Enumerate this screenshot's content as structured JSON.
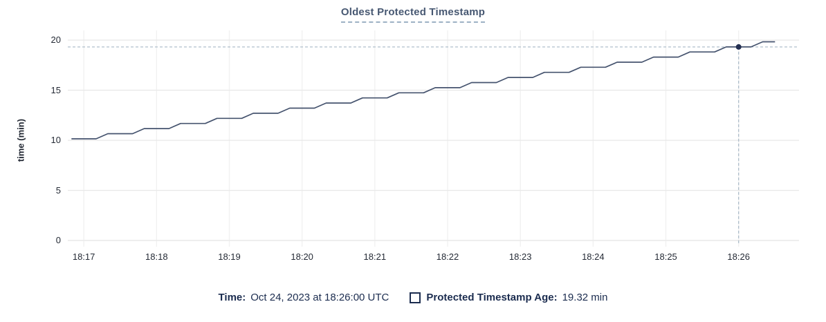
{
  "chart_data": {
    "type": "line",
    "title": "Oldest Protected Timestamp",
    "xlabel": "",
    "ylabel": "time (min)",
    "x_unit": "minutes after 18:00 UTC, Oct 24 2023",
    "xlim": [
      16.78,
      26.83
    ],
    "ylim": [
      0,
      20.97
    ],
    "grid": true,
    "legend_position": "bottom",
    "x_ticks": {
      "values": [
        17,
        18,
        19,
        20,
        21,
        22,
        23,
        24,
        25,
        26
      ],
      "labels": [
        "18:17",
        "18:18",
        "18:19",
        "18:20",
        "18:21",
        "18:22",
        "18:23",
        "18:24",
        "18:25",
        "18:26"
      ]
    },
    "y_ticks": {
      "values": [
        0,
        5,
        10,
        15,
        20
      ],
      "labels": [
        "0",
        "5",
        "10",
        "15",
        "20"
      ]
    },
    "series": [
      {
        "name": "Protected Timestamp Age",
        "unit": "min",
        "points": [
          [
            16.83,
            10.15
          ],
          [
            17.17,
            10.15
          ],
          [
            17.33,
            10.66
          ],
          [
            17.67,
            10.66
          ],
          [
            17.83,
            11.17
          ],
          [
            18.17,
            11.17
          ],
          [
            18.33,
            11.68
          ],
          [
            18.67,
            11.68
          ],
          [
            18.83,
            12.19
          ],
          [
            19.17,
            12.19
          ],
          [
            19.33,
            12.7
          ],
          [
            19.67,
            12.7
          ],
          [
            19.83,
            13.21
          ],
          [
            20.17,
            13.21
          ],
          [
            20.33,
            13.72
          ],
          [
            20.67,
            13.72
          ],
          [
            20.83,
            14.23
          ],
          [
            21.17,
            14.23
          ],
          [
            21.33,
            14.74
          ],
          [
            21.67,
            14.74
          ],
          [
            21.83,
            15.25
          ],
          [
            22.17,
            15.25
          ],
          [
            22.33,
            15.76
          ],
          [
            22.67,
            15.76
          ],
          [
            22.83,
            16.27
          ],
          [
            23.17,
            16.27
          ],
          [
            23.33,
            16.78
          ],
          [
            23.67,
            16.78
          ],
          [
            23.83,
            17.29
          ],
          [
            24.17,
            17.29
          ],
          [
            24.33,
            17.8
          ],
          [
            24.67,
            17.8
          ],
          [
            24.83,
            18.31
          ],
          [
            25.17,
            18.31
          ],
          [
            25.33,
            18.82
          ],
          [
            25.67,
            18.82
          ],
          [
            25.83,
            19.32
          ],
          [
            26.17,
            19.32
          ],
          [
            26.33,
            19.83
          ],
          [
            26.5,
            19.83
          ]
        ]
      }
    ],
    "hover": {
      "x": 26.0,
      "y": 19.32,
      "time_label": "18:26:00"
    },
    "colors": {
      "line": "#45536e",
      "hover_dot": "#243052",
      "crosshair": "#a7b8c6",
      "grid_h": "#e9e9e9",
      "grid_v": "#f1f1f1",
      "title": "#475872",
      "title_underline": "#9db1c4",
      "tick_text": "#242a35",
      "legend_text": "#1b2c4f",
      "background": "#ffffff"
    }
  },
  "legend": {
    "time_label": "Time:",
    "time_value": "Oct 24, 2023 at 18:26:00 UTC",
    "series_label": "Protected Timestamp Age:",
    "series_value": "19.32 min"
  }
}
